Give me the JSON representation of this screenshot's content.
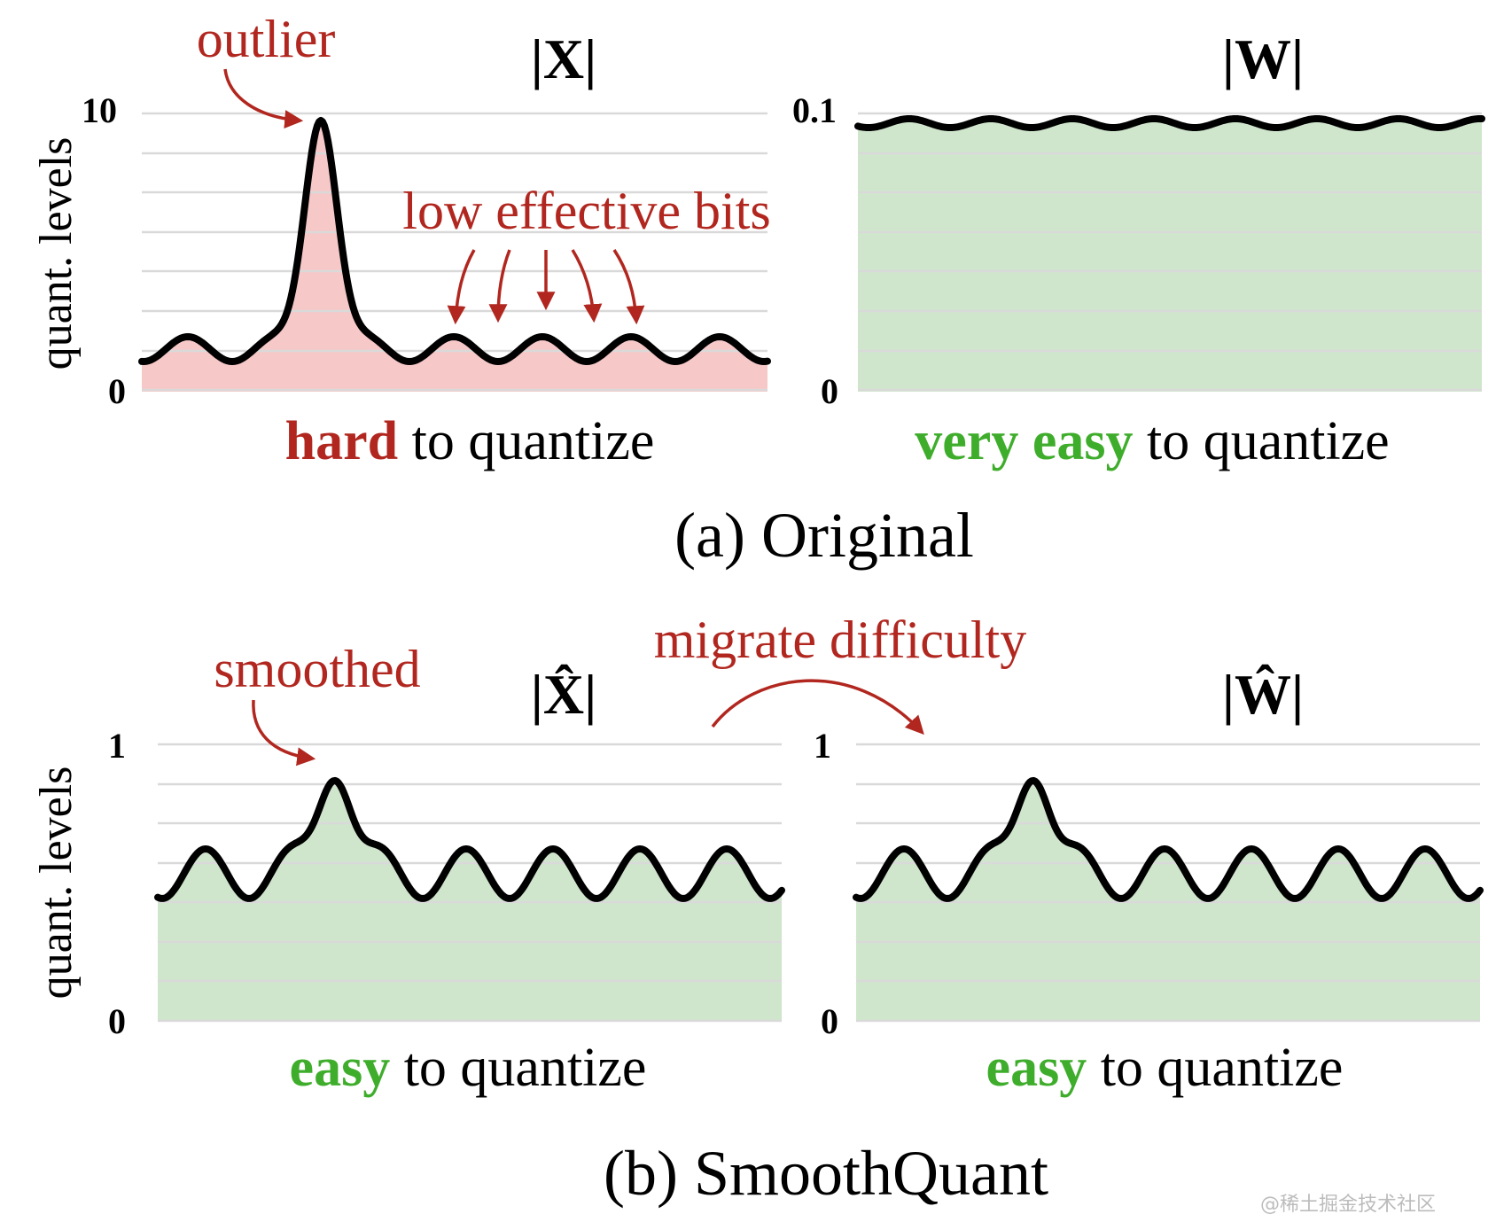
{
  "colors": {
    "annotation_red": "#b1271f",
    "easy_green": "#3fad2c",
    "fill_red": "#f7c8c8",
    "fill_green": "#cfe6cc",
    "curve": "#000000",
    "grid": "#d9d9d9"
  },
  "labels": {
    "y_axis": "quant. levels",
    "outlier": "outlier",
    "low_effective_bits": "low effective bits",
    "smoothed": "smoothed",
    "migrate_difficulty": "migrate difficulty",
    "to_quantize": "to quantize",
    "hard": "hard",
    "very_easy": "very easy",
    "easy": "easy"
  },
  "panels": {
    "x": {
      "title": "|X|",
      "ymax": "10",
      "ymin": "0",
      "verdict": "hard",
      "fill": "red"
    },
    "w": {
      "title": "|W|",
      "ymax": "0.1",
      "ymin": "0",
      "verdict": "very easy",
      "fill": "green"
    },
    "xhat": {
      "title": "|X̂|",
      "ymax": "1",
      "ymin": "0",
      "verdict": "easy",
      "fill": "green"
    },
    "what": {
      "title": "|Ŵ|",
      "ymax": "1",
      "ymin": "0",
      "verdict": "easy",
      "fill": "green"
    }
  },
  "captions": {
    "a": "(a) Original",
    "b": "(b) SmoothQuant"
  },
  "watermark": "@稀土掘金技术社区"
}
